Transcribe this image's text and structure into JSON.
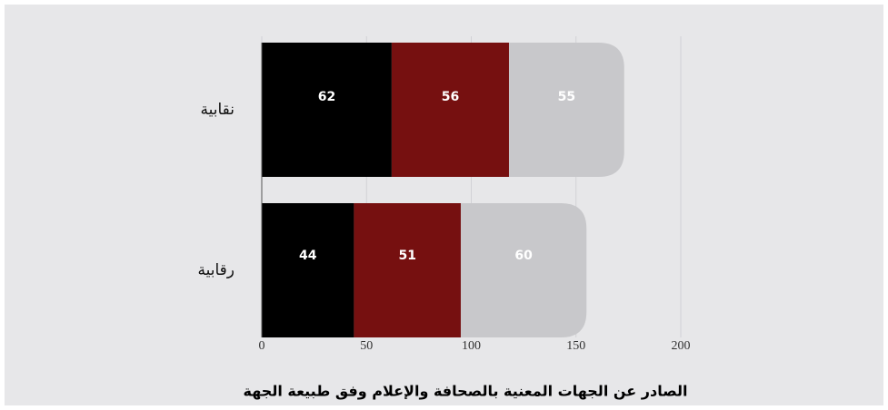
{
  "chart_data": {
    "type": "stacked_barh",
    "title": "الصادر عن الجهات المعنية بالصحافة والإعلام وفق طبيعة الجهة",
    "categories": [
      "نقابية",
      "رقابية"
    ],
    "series": [
      {
        "color": "#000000",
        "values": [
          62,
          44
        ]
      },
      {
        "color": "#761010",
        "values": [
          56,
          51
        ]
      },
      {
        "color": "#c8c8cb",
        "values": [
          55,
          60
        ]
      }
    ],
    "xlim": [
      0,
      200
    ],
    "xticks": [
      0,
      50,
      100,
      150,
      200
    ],
    "grid": true
  }
}
